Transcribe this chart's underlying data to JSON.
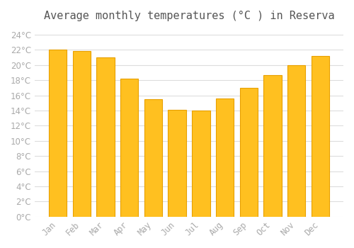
{
  "months": [
    "Jan",
    "Feb",
    "Mar",
    "Apr",
    "May",
    "Jun",
    "Jul",
    "Aug",
    "Sep",
    "Oct",
    "Nov",
    "Dec"
  ],
  "values": [
    22.0,
    21.8,
    21.0,
    18.2,
    15.5,
    14.1,
    14.0,
    15.6,
    17.0,
    18.7,
    20.0,
    21.2
  ],
  "bar_color": "#FFC020",
  "bar_edge_color": "#E8A000",
  "title": "Average monthly temperatures (°C ) in Reserva",
  "ylabel": "",
  "xlabel": "",
  "ylim": [
    0,
    25
  ],
  "ytick_interval": 2,
  "background_color": "#FFFFFF",
  "grid_color": "#DDDDDD",
  "title_fontsize": 11,
  "tick_fontsize": 8.5,
  "tick_label_color": "#AAAAAA",
  "title_color": "#555555"
}
